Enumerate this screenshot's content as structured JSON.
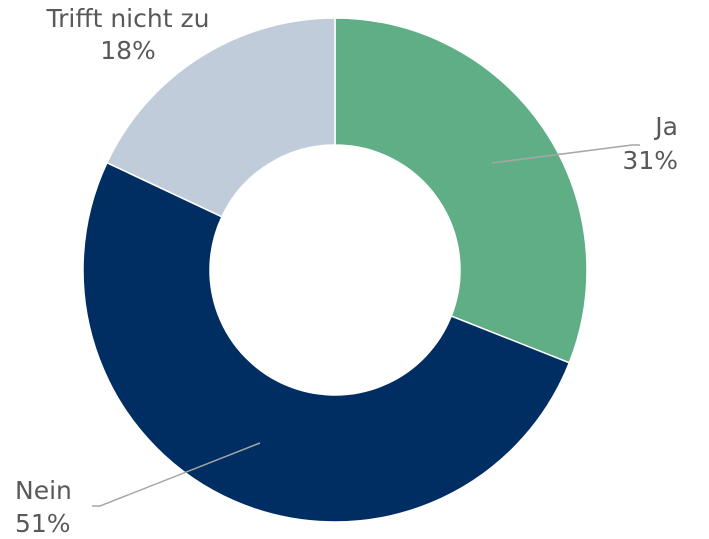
{
  "chart_data": {
    "type": "donut",
    "categories": [
      "Ja",
      "Nein",
      "Trifft nicht zu"
    ],
    "values": [
      31,
      51,
      18
    ],
    "value_labels": [
      "31%",
      "51%",
      "18%"
    ],
    "colors": [
      "#5fae86",
      "#002e62",
      "#c0ccd9"
    ]
  }
}
